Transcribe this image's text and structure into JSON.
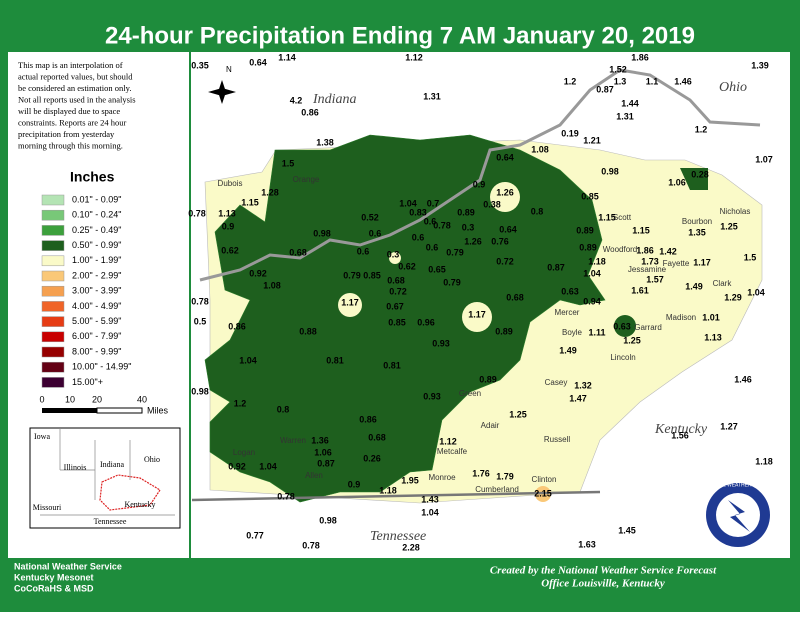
{
  "header": {
    "title": "24-hour Precipitation Ending 7 AM  January 20, 2019"
  },
  "disclaimer": [
    "This map is an interpolation of",
    "actual reported values, but should",
    "be considered an estimation only.",
    "Not all reports used in the analysis",
    "will be displayed due to space",
    "constraints. Reports are 24 hour",
    "precipitation from yesterday",
    "morning through this morning."
  ],
  "legend": {
    "title": "Inches",
    "items": [
      {
        "label": "0.01\" - 0.09\"",
        "color": "#b4e4b4"
      },
      {
        "label": "0.10\" - 0.24\"",
        "color": "#78c878"
      },
      {
        "label": "0.25\" - 0.49\"",
        "color": "#3ca03c"
      },
      {
        "label": "0.50\" - 0.99\"",
        "color": "#1e5f1e"
      },
      {
        "label": "1.00\" - 1.99\"",
        "color": "#fafac8"
      },
      {
        "label": "2.00\" - 2.99\"",
        "color": "#fac878"
      },
      {
        "label": "3.00\" - 3.99\"",
        "color": "#f5a050"
      },
      {
        "label": "4.00\" - 4.99\"",
        "color": "#f06428"
      },
      {
        "label": "5.00\" - 5.99\"",
        "color": "#e63c14"
      },
      {
        "label": "6.00\" - 7.99\"",
        "color": "#c80000"
      },
      {
        "label": "8.00\" - 9.99\"",
        "color": "#960000"
      },
      {
        "label": "10.00\" - 14.99\"",
        "color": "#640014"
      },
      {
        "label": "15.00\"+",
        "color": "#3c0032"
      }
    ]
  },
  "scale": {
    "ticks": [
      "0",
      "10",
      "20",
      "40"
    ],
    "unit": "Miles"
  },
  "north": "N",
  "states": [
    "Indiana",
    "Ohio",
    "Kentucky",
    "Tennessee"
  ],
  "counties": [
    "Orange",
    "Dubois",
    "Warren",
    "Allen",
    "Monroe",
    "Metcalfe",
    "Adair",
    "Russell",
    "Casey",
    "Clinton",
    "Cumberland",
    "Lincoln",
    "Boyle",
    "Mercer",
    "Scott",
    "Bourbon",
    "Nicholas",
    "Fayette",
    "Clark",
    "Madison",
    "Jessamine",
    "Woodford",
    "Garrard",
    "Green",
    "Logan"
  ],
  "amounts": [
    "0.35",
    "0.64",
    "1.14",
    "1.12",
    "1.86",
    "1.39",
    "1.52",
    "1.2",
    "1.3",
    "1.1",
    "1.46",
    "0.87",
    "1.44",
    "4.2",
    "1.31",
    "0.86",
    "1.31",
    "1.2",
    "0.19",
    "1.21",
    "1.38",
    "1.08",
    "1.07",
    "1.5",
    "0.64",
    "0.98",
    "1.06",
    "0.28",
    "0.9",
    "1.26",
    "0.85",
    "1.28",
    "1.15",
    "1.13",
    "0.78",
    "0.9",
    "1.04",
    "0.7",
    "0.89",
    "0.38",
    "0.8",
    "0.52",
    "0.83",
    "0.6",
    "0.78",
    "0.3",
    "0.64",
    "1.15",
    "1.15",
    "1.25",
    "1.35",
    "0.98",
    "0.6",
    "0.6",
    "0.6",
    "1.26",
    "0.76",
    "0.89",
    "0.89",
    "0.62",
    "0.68",
    "0.6",
    "0.3",
    "0.79",
    "0.72",
    "1.86",
    "1.73",
    "1.42",
    "1.17",
    "1.5",
    "0.92",
    "0.79",
    "0.85",
    "0.62",
    "0.65",
    "1.18",
    "0.87",
    "1.04",
    "1.57",
    "0.68",
    "0.79",
    "1.08",
    "0.72",
    "1.49",
    "1.61",
    "1.29",
    "1.04",
    "0.78",
    "0.68",
    "0.63",
    "0.94",
    "1.17",
    "0.67",
    "1.17",
    "1.01",
    "0.5",
    "0.86",
    "0.85",
    "0.96",
    "0.89",
    "0.88",
    "0.63",
    "1.11",
    "1.25",
    "1.13",
    "1.49",
    "0.93",
    "1.04",
    "0.81",
    "0.81",
    "0.89",
    "0.98",
    "1.32",
    "1.46",
    "0.93",
    "1.47",
    "1.2",
    "0.8",
    "0.86",
    "1.25",
    "1.27",
    "1.56",
    "0.68",
    "1.36",
    "1.12",
    "1.06",
    "0.26",
    "0.87",
    "0.92",
    "1.04",
    "1.18",
    "1.76",
    "1.79",
    "0.9",
    "1.95",
    "1.18",
    "0.78",
    "1.43",
    "2.15",
    "1.04",
    "0.98",
    "0.77",
    "1.45",
    "0.78",
    "2.28",
    "1.63"
  ],
  "inset": {
    "labels": [
      "Iowa",
      "Illinois",
      "Indiana",
      "Ohio",
      "Missouri",
      "Kentucky",
      "Tennessee"
    ]
  },
  "logo": "NATIONAL WEATHER SERVICE",
  "footer": {
    "left": [
      "National Weather Service",
      "Kentucky Mesonet",
      "CoCoRaHS & MSD"
    ],
    "right": [
      "Created by the National Weather Service Forecast",
      "Office Louisville, Kentucky"
    ]
  }
}
